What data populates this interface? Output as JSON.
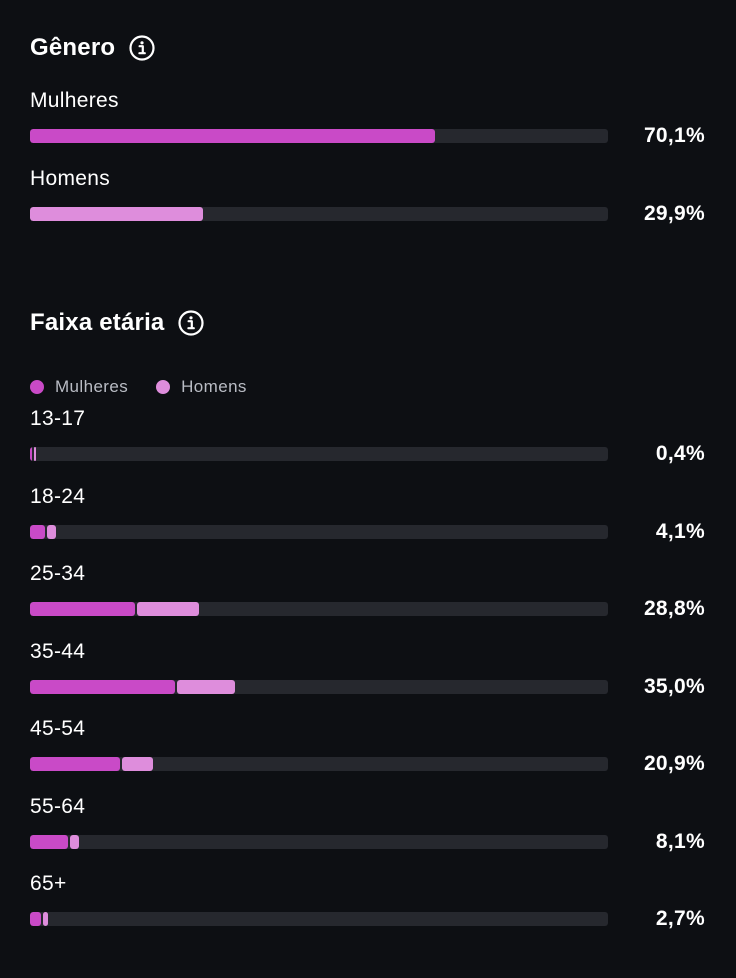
{
  "colors": {
    "women": "#c94ac7",
    "men": "#de8ddc",
    "track": "#26282e",
    "background": "#0d0f13"
  },
  "gender": {
    "title": "Gênero",
    "info_icon": "info-circle-icon",
    "rows": [
      {
        "label": "Mulheres",
        "percent_text": "70,1%",
        "value": 70.1,
        "series": "women"
      },
      {
        "label": "Homens",
        "percent_text": "29,9%",
        "value": 29.9,
        "series": "men"
      }
    ]
  },
  "age": {
    "title": "Faixa etária",
    "info_icon": "info-circle-icon",
    "legend": {
      "women": "Mulheres",
      "men": "Homens"
    },
    "rows": [
      {
        "label": "13-17",
        "percent_text": "0,4%",
        "women": 0.25,
        "men": 0.15
      },
      {
        "label": "18-24",
        "percent_text": "4,1%",
        "women": 2.6,
        "men": 1.5
      },
      {
        "label": "25-34",
        "percent_text": "28,8%",
        "women": 18.1,
        "men": 10.7
      },
      {
        "label": "35-44",
        "percent_text": "35,0%",
        "women": 25.0,
        "men": 10.0
      },
      {
        "label": "45-54",
        "percent_text": "20,9%",
        "women": 15.6,
        "men": 5.3
      },
      {
        "label": "55-64",
        "percent_text": "8,1%",
        "women": 6.5,
        "men": 1.6
      },
      {
        "label": "65+",
        "percent_text": "2,7%",
        "women": 1.9,
        "men": 0.8
      }
    ]
  }
}
